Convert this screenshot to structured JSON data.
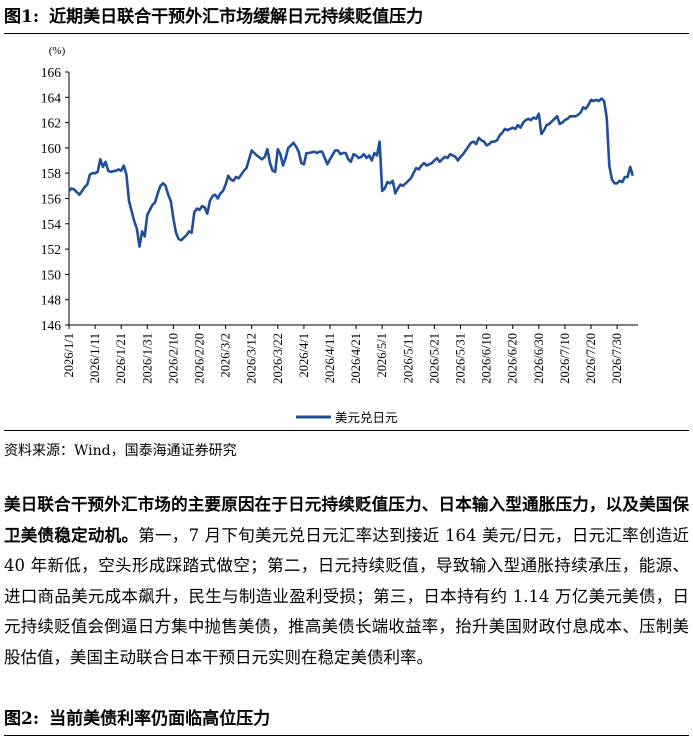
{
  "figure1": {
    "label": "图1:",
    "title": "近期美日联合干预外汇市场缓解日元持续贬值压力"
  },
  "source": "资料来源：Wind，国泰海通证券研究",
  "paragraph": {
    "bold": "美日联合干预外汇市场的主要原因在于日元持续贬值压力、日本输入型通胀压力，以及美国保卫美债稳定动机。",
    "text": "第一，7 月下旬美元兑日元汇率达到接近 164 美元/日元，日元汇率创造近 40 年新低，空头形成踩踏式做空；第二，日元持续贬值，导致输入型通胀持续承压，能源、进口商品美元成本飙升，民生与制造业盈利受损；第三，日本持有约 1.14 万亿美元美债，日元持续贬值会倒逼日方集中抛售美债，推高美债长端收益率，抬升美国财政付息成本、压制美股估值，美国主动联合日本干预日元实则在稳定美债利率。"
  },
  "figure2": {
    "label": "图2:",
    "title": "当前美债利率仍面临高位压力"
  },
  "chart_data": {
    "type": "line",
    "unit": "(%)",
    "ylim": [
      146,
      166
    ],
    "yticks": [
      146,
      148,
      150,
      152,
      154,
      156,
      158,
      160,
      162,
      164,
      166
    ],
    "xlim": [
      "2026-01-01",
      "2026-08-07"
    ],
    "xticks": [
      "2026/1/1",
      "2026/1/11",
      "2026/1/21",
      "2026/1/31",
      "2026/2/10",
      "2026/2/20",
      "2026/3/2",
      "2026/3/12",
      "2026/3/22",
      "2026/4/1",
      "2026/4/11",
      "2026/4/21",
      "2026/5/1",
      "2026/5/11",
      "2026/5/21",
      "2026/5/31",
      "2026/6/10",
      "2026/6/20",
      "2026/6/30",
      "2026/7/10",
      "2026/7/20",
      "2026/7/30"
    ],
    "grid": false,
    "legend": "bottom-center",
    "color": "#1f4e9a",
    "series": [
      {
        "name": "美元兑日元",
        "points": [
          [
            "2026-01-01",
            156.6
          ],
          [
            "2026-01-02",
            156.8
          ],
          [
            "2026-01-03",
            156.7
          ],
          [
            "2026-01-05",
            156.3
          ],
          [
            "2026-01-06",
            156.6
          ],
          [
            "2026-01-07",
            156.9
          ],
          [
            "2026-01-08",
            157.1
          ],
          [
            "2026-01-09",
            157.9
          ],
          [
            "2026-01-10",
            158.0
          ],
          [
            "2026-01-11",
            158.0
          ],
          [
            "2026-01-12",
            158.1
          ],
          [
            "2026-01-13",
            159.1
          ],
          [
            "2026-01-14",
            158.5
          ],
          [
            "2026-01-15",
            158.9
          ],
          [
            "2026-01-16",
            158.2
          ],
          [
            "2026-01-17",
            158.1
          ],
          [
            "2026-01-19",
            158.2
          ],
          [
            "2026-01-20",
            158.3
          ],
          [
            "2026-01-21",
            158.2
          ],
          [
            "2026-01-22",
            158.6
          ],
          [
            "2026-01-23",
            157.9
          ],
          [
            "2026-01-24",
            155.8
          ],
          [
            "2026-01-25",
            155.0
          ],
          [
            "2026-01-26",
            154.2
          ],
          [
            "2026-01-27",
            153.6
          ],
          [
            "2026-01-28",
            152.2
          ],
          [
            "2026-01-29",
            153.4
          ],
          [
            "2026-01-30",
            153.0
          ],
          [
            "2026-01-31",
            154.7
          ],
          [
            "2026-02-01",
            155.1
          ],
          [
            "2026-02-02",
            155.5
          ],
          [
            "2026-02-03",
            155.7
          ],
          [
            "2026-02-04",
            156.4
          ],
          [
            "2026-02-05",
            157.0
          ],
          [
            "2026-02-06",
            157.2
          ],
          [
            "2026-02-07",
            157.0
          ],
          [
            "2026-02-08",
            156.3
          ],
          [
            "2026-02-09",
            155.8
          ],
          [
            "2026-02-10",
            154.4
          ],
          [
            "2026-02-11",
            153.3
          ],
          [
            "2026-02-12",
            152.8
          ],
          [
            "2026-02-13",
            152.7
          ],
          [
            "2026-02-14",
            152.9
          ],
          [
            "2026-02-15",
            153.1
          ],
          [
            "2026-02-16",
            153.4
          ],
          [
            "2026-02-17",
            153.3
          ],
          [
            "2026-02-18",
            154.9
          ],
          [
            "2026-02-19",
            155.2
          ],
          [
            "2026-02-20",
            155.1
          ],
          [
            "2026-02-21",
            155.4
          ],
          [
            "2026-02-22",
            155.3
          ],
          [
            "2026-02-23",
            154.8
          ],
          [
            "2026-02-24",
            155.8
          ],
          [
            "2026-02-25",
            156.2
          ],
          [
            "2026-02-26",
            156.3
          ],
          [
            "2026-02-27",
            156.0
          ],
          [
            "2026-02-28",
            156.4
          ],
          [
            "2026-03-01",
            156.6
          ],
          [
            "2026-03-02",
            157.1
          ],
          [
            "2026-03-03",
            157.8
          ],
          [
            "2026-03-04",
            157.5
          ],
          [
            "2026-03-05",
            157.4
          ],
          [
            "2026-03-06",
            157.7
          ],
          [
            "2026-03-07",
            157.6
          ],
          [
            "2026-03-09",
            158.2
          ],
          [
            "2026-03-10",
            158.4
          ],
          [
            "2026-03-11",
            159.1
          ],
          [
            "2026-03-12",
            159.8
          ],
          [
            "2026-03-13",
            159.6
          ],
          [
            "2026-03-14",
            159.4
          ],
          [
            "2026-03-16",
            159.1
          ],
          [
            "2026-03-17",
            159.3
          ],
          [
            "2026-03-18",
            159.9
          ],
          [
            "2026-03-19",
            158.8
          ],
          [
            "2026-03-20",
            158.2
          ],
          [
            "2026-03-21",
            158.1
          ],
          [
            "2026-03-22",
            159.9
          ],
          [
            "2026-03-23",
            159.5
          ],
          [
            "2026-03-24",
            158.6
          ],
          [
            "2026-03-25",
            159.2
          ],
          [
            "2026-03-26",
            160.0
          ],
          [
            "2026-03-27",
            160.2
          ],
          [
            "2026-03-28",
            160.4
          ],
          [
            "2026-03-29",
            160.1
          ],
          [
            "2026-03-30",
            159.7
          ],
          [
            "2026-03-31",
            158.8
          ],
          [
            "2026-04-01",
            158.7
          ],
          [
            "2026-04-02",
            159.6
          ],
          [
            "2026-04-03",
            159.6
          ],
          [
            "2026-04-05",
            159.7
          ],
          [
            "2026-04-06",
            159.6
          ],
          [
            "2026-04-07",
            159.7
          ],
          [
            "2026-04-08",
            159.7
          ],
          [
            "2026-04-09",
            159.2
          ],
          [
            "2026-04-10",
            158.7
          ],
          [
            "2026-04-11",
            159.1
          ],
          [
            "2026-04-13",
            159.8
          ],
          [
            "2026-04-14",
            159.8
          ],
          [
            "2026-04-15",
            159.5
          ],
          [
            "2026-04-16",
            159.6
          ],
          [
            "2026-04-17",
            159.6
          ],
          [
            "2026-04-18",
            159.1
          ],
          [
            "2026-04-19",
            158.9
          ],
          [
            "2026-04-20",
            159.5
          ],
          [
            "2026-04-21",
            159.4
          ],
          [
            "2026-04-22",
            159.2
          ],
          [
            "2026-04-23",
            159.3
          ],
          [
            "2026-04-24",
            159.5
          ],
          [
            "2026-04-25",
            159.2
          ],
          [
            "2026-04-26",
            159.4
          ],
          [
            "2026-04-27",
            159.0
          ],
          [
            "2026-04-28",
            159.6
          ],
          [
            "2026-04-29",
            159.4
          ],
          [
            "2026-04-30",
            160.5
          ],
          [
            "2026-05-01",
            156.6
          ],
          [
            "2026-05-02",
            156.8
          ],
          [
            "2026-05-03",
            157.3
          ],
          [
            "2026-05-04",
            157.2
          ],
          [
            "2026-05-05",
            157.4
          ],
          [
            "2026-05-06",
            156.4
          ],
          [
            "2026-05-07",
            156.8
          ],
          [
            "2026-05-08",
            157.1
          ],
          [
            "2026-05-09",
            157.0
          ],
          [
            "2026-05-10",
            157.2
          ],
          [
            "2026-05-11",
            157.4
          ],
          [
            "2026-05-12",
            157.6
          ],
          [
            "2026-05-13",
            158.0
          ],
          [
            "2026-05-14",
            158.4
          ],
          [
            "2026-05-15",
            158.3
          ],
          [
            "2026-05-16",
            158.6
          ],
          [
            "2026-05-17",
            158.8
          ],
          [
            "2026-05-18",
            158.6
          ],
          [
            "2026-05-19",
            158.7
          ],
          [
            "2026-05-20",
            158.8
          ],
          [
            "2026-05-21",
            159.0
          ],
          [
            "2026-05-22",
            159.2
          ],
          [
            "2026-05-23",
            158.9
          ],
          [
            "2026-05-24",
            159.1
          ],
          [
            "2026-05-25",
            159.3
          ],
          [
            "2026-05-26",
            159.2
          ],
          [
            "2026-05-27",
            159.5
          ],
          [
            "2026-05-28",
            159.4
          ],
          [
            "2026-05-29",
            159.3
          ],
          [
            "2026-05-30",
            159.0
          ],
          [
            "2026-05-31",
            159.3
          ],
          [
            "2026-06-01",
            159.5
          ],
          [
            "2026-06-02",
            159.8
          ],
          [
            "2026-06-03",
            160.1
          ],
          [
            "2026-06-04",
            160.4
          ],
          [
            "2026-06-05",
            160.5
          ],
          [
            "2026-06-06",
            160.3
          ],
          [
            "2026-06-07",
            160.8
          ],
          [
            "2026-06-08",
            160.6
          ],
          [
            "2026-06-09",
            160.5
          ],
          [
            "2026-06-10",
            160.2
          ],
          [
            "2026-06-11",
            160.3
          ],
          [
            "2026-06-12",
            160.5
          ],
          [
            "2026-06-13",
            160.5
          ],
          [
            "2026-06-14",
            160.6
          ],
          [
            "2026-06-15",
            161.0
          ],
          [
            "2026-06-16",
            161.2
          ],
          [
            "2026-06-17",
            161.5
          ],
          [
            "2026-06-18",
            161.4
          ],
          [
            "2026-06-19",
            161.5
          ],
          [
            "2026-06-20",
            161.6
          ],
          [
            "2026-06-21",
            161.5
          ],
          [
            "2026-06-22",
            161.8
          ],
          [
            "2026-06-23",
            161.6
          ],
          [
            "2026-06-24",
            162.0
          ],
          [
            "2026-06-25",
            162.2
          ],
          [
            "2026-06-26",
            162.3
          ],
          [
            "2026-06-27",
            162.2
          ],
          [
            "2026-06-28",
            162.4
          ],
          [
            "2026-06-29",
            162.3
          ],
          [
            "2026-06-30",
            162.7
          ],
          [
            "2026-07-01",
            161.1
          ],
          [
            "2026-07-02",
            161.4
          ],
          [
            "2026-07-03",
            161.8
          ],
          [
            "2026-07-04",
            161.9
          ],
          [
            "2026-07-05",
            162.1
          ],
          [
            "2026-07-06",
            162.3
          ],
          [
            "2026-07-07",
            162.5
          ],
          [
            "2026-07-08",
            161.9
          ],
          [
            "2026-07-09",
            162.0
          ],
          [
            "2026-07-10",
            162.2
          ],
          [
            "2026-07-11",
            162.3
          ],
          [
            "2026-07-12",
            162.5
          ],
          [
            "2026-07-13",
            162.5
          ],
          [
            "2026-07-14",
            162.5
          ],
          [
            "2026-07-15",
            162.6
          ],
          [
            "2026-07-16",
            162.8
          ],
          [
            "2026-07-17",
            163.2
          ],
          [
            "2026-07-18",
            163.1
          ],
          [
            "2026-07-19",
            163.4
          ],
          [
            "2026-07-20",
            163.8
          ],
          [
            "2026-07-21",
            163.7
          ],
          [
            "2026-07-22",
            163.8
          ],
          [
            "2026-07-23",
            163.7
          ],
          [
            "2026-07-24",
            163.9
          ],
          [
            "2026-07-25",
            163.7
          ],
          [
            "2026-07-26",
            162.4
          ],
          [
            "2026-07-27",
            158.6
          ],
          [
            "2026-07-28",
            157.5
          ],
          [
            "2026-07-29",
            157.2
          ],
          [
            "2026-07-30",
            157.2
          ],
          [
            "2026-07-31",
            157.4
          ],
          [
            "2026-08-01",
            157.3
          ],
          [
            "2026-08-02",
            157.7
          ],
          [
            "2026-08-03",
            157.7
          ],
          [
            "2026-08-04",
            158.5
          ],
          [
            "2026-08-05",
            157.8
          ]
        ]
      }
    ]
  }
}
